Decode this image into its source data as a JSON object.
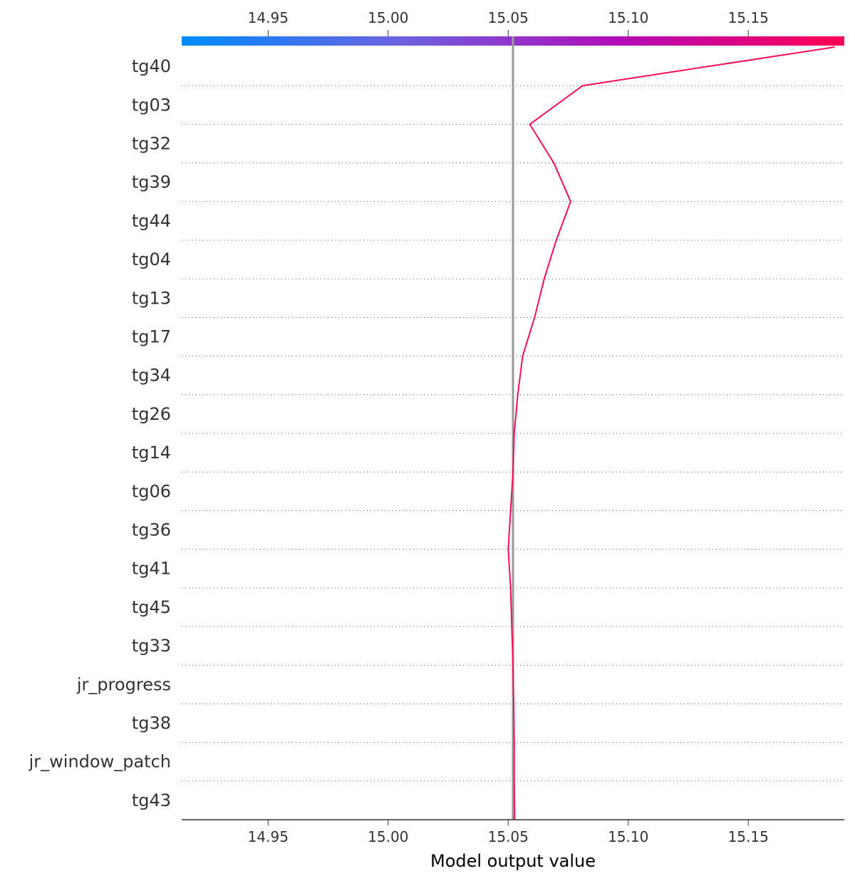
{
  "chart_data": {
    "type": "line",
    "title": "",
    "xlabel": "Model output value",
    "ylabel": "",
    "xlim": [
      14.914,
      15.19
    ],
    "base_value": 15.052,
    "xticks": [
      "14.95",
      "15.00",
      "15.05",
      "15.10",
      "15.15"
    ],
    "features": [
      "tg40",
      "tg03",
      "tg32",
      "tg39",
      "tg44",
      "tg04",
      "tg13",
      "tg17",
      "tg34",
      "tg26",
      "tg14",
      "tg06",
      "tg36",
      "tg41",
      "tg45",
      "tg33",
      "jr_progress",
      "tg38",
      "jr_window_patch",
      "tg43"
    ],
    "path_values": [
      15.186,
      15.081,
      15.059,
      15.069,
      15.076,
      15.07,
      15.065,
      15.061,
      15.056,
      15.054,
      15.0525,
      15.052,
      15.051,
      15.05,
      15.051,
      15.0515,
      15.052,
      15.0523,
      15.0525,
      15.0525,
      15.0527
    ],
    "grid": "dotted horizontal separators",
    "colorbar": {
      "position": "top",
      "colors": [
        "#008bfb",
        "#6d61e0",
        "#b30ab6",
        "#ff0052"
      ]
    },
    "line_color": "#ff0d57",
    "base_line_color": "#999999"
  }
}
